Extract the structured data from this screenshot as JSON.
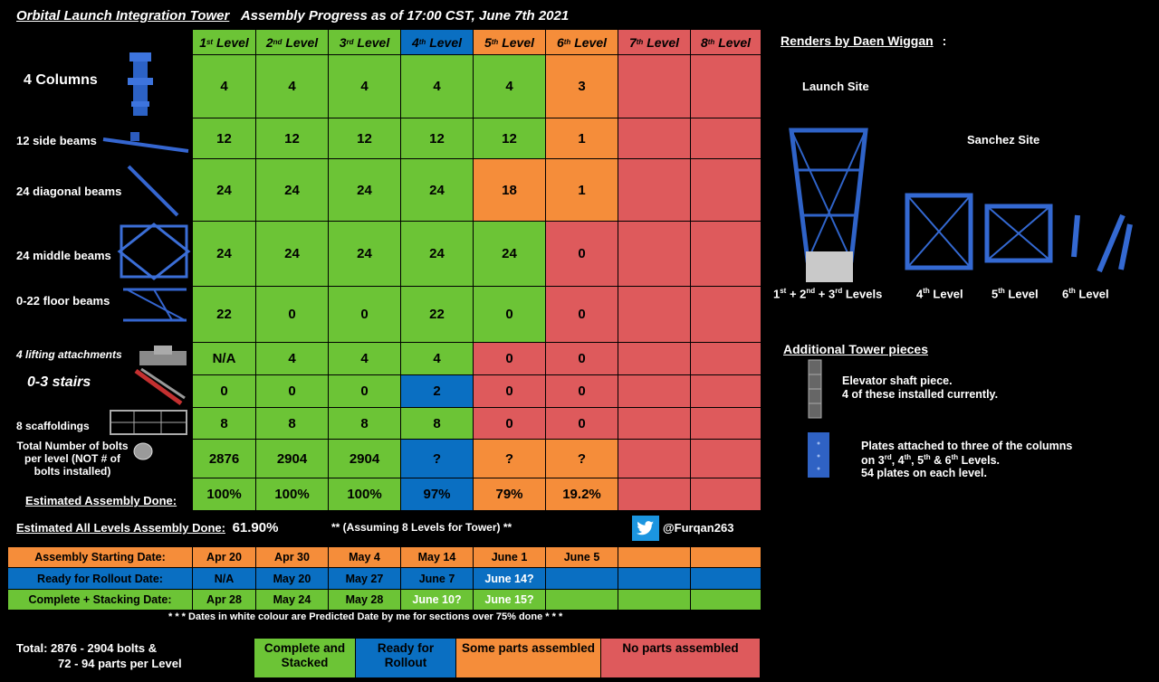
{
  "title": {
    "left": "Orbital Launch Integration Tower",
    "right": "Assembly Progress as of 17:00 CST, June 7th 2021"
  },
  "levels": [
    "1st Level",
    "2nd Level",
    "3rd Level",
    "4th Level",
    "5th Level",
    "6th Level",
    "7th Level",
    "8th Level"
  ],
  "rows": [
    {
      "label": "4 Columns",
      "values": [
        "4",
        "4",
        "4",
        "4",
        "4",
        "3",
        "",
        ""
      ]
    },
    {
      "label": "12 side beams",
      "values": [
        "12",
        "12",
        "12",
        "12",
        "12",
        "1",
        "",
        ""
      ]
    },
    {
      "label": "24 diagonal beams",
      "values": [
        "24",
        "24",
        "24",
        "24",
        "18",
        "1",
        "",
        ""
      ]
    },
    {
      "label": "24 middle beams",
      "values": [
        "24",
        "24",
        "24",
        "24",
        "24",
        "0",
        "",
        ""
      ]
    },
    {
      "label": "0-22 floor beams",
      "values": [
        "22",
        "0",
        "0",
        "22",
        "0",
        "0",
        "",
        ""
      ]
    },
    {
      "label": "4 lifting attachments",
      "values": [
        "N/A",
        "4",
        "4",
        "4",
        "0",
        "0",
        "",
        ""
      ]
    },
    {
      "label": "0-3 stairs",
      "values": [
        "0",
        "0",
        "0",
        "2",
        "0",
        "0",
        "",
        ""
      ]
    },
    {
      "label": "8 scaffoldings",
      "values": [
        "8",
        "8",
        "8",
        "8",
        "0",
        "0",
        "",
        ""
      ]
    },
    {
      "label": "Total Number of bolts per level (NOT # of bolts installed)",
      "values": [
        "2876",
        "2904",
        "2904",
        "?",
        "?",
        "?",
        "",
        ""
      ]
    },
    {
      "label": "Estimated Assembly Done:",
      "values": [
        "100%",
        "100%",
        "100%",
        "97%",
        "79%",
        "19.2%",
        "",
        ""
      ]
    }
  ],
  "summary": {
    "label": "Estimated All Levels Assembly Done:",
    "value": "61.90%",
    "note": "** (Assuming 8 Levels for Tower) **",
    "twitter": "@Furqan263"
  },
  "schedule": [
    {
      "label": "Assembly Starting Date:",
      "values": [
        "Apr 20",
        "Apr 30",
        "May 4",
        "May 14",
        "June 1",
        "June 5",
        "",
        ""
      ]
    },
    {
      "label": "Ready for Rollout Date:",
      "values": [
        "N/A",
        "May 20",
        "May 27",
        "June 7",
        "June 14?",
        "",
        "",
        ""
      ]
    },
    {
      "label": "Complete + Stacking Date:",
      "values": [
        "Apr 28",
        "May 24",
        "May 28",
        "June 10?",
        "June 15?",
        "",
        "",
        ""
      ]
    }
  ],
  "footnote": "* * * Dates in white colour are Predicted Date by me for sections over 75% done * * *",
  "total": {
    "line1": "Total:  2876 - 2904 bolts &",
    "line2": "72 - 94 parts per Level"
  },
  "legend": [
    "Complete and Stacked",
    "Ready for Rollout",
    "Some parts assembled",
    "No parts assembled"
  ],
  "renders": {
    "heading": "Renders by Daen Wiggan",
    "colon": ":",
    "launch_site": "Launch Site",
    "sanchez_site": "Sanchez Site",
    "captions": [
      "1st + 2nd + 3rd Levels",
      "4th Level",
      "5th Level",
      "6th Level"
    ]
  },
  "additional": {
    "heading": "Additional Tower pieces",
    "elevator": [
      "Elevator shaft piece.",
      "4 of these installed currently."
    ],
    "plates": [
      "Plates attached to three of the columns",
      "on 3rd, 4th, 5th & 6th Levels.",
      "54 plates on each level."
    ]
  },
  "colors": {
    "green": "#6cc436",
    "blue": "#0a6fc2",
    "orange": "#f58d3a",
    "red": "#de5a5c"
  }
}
